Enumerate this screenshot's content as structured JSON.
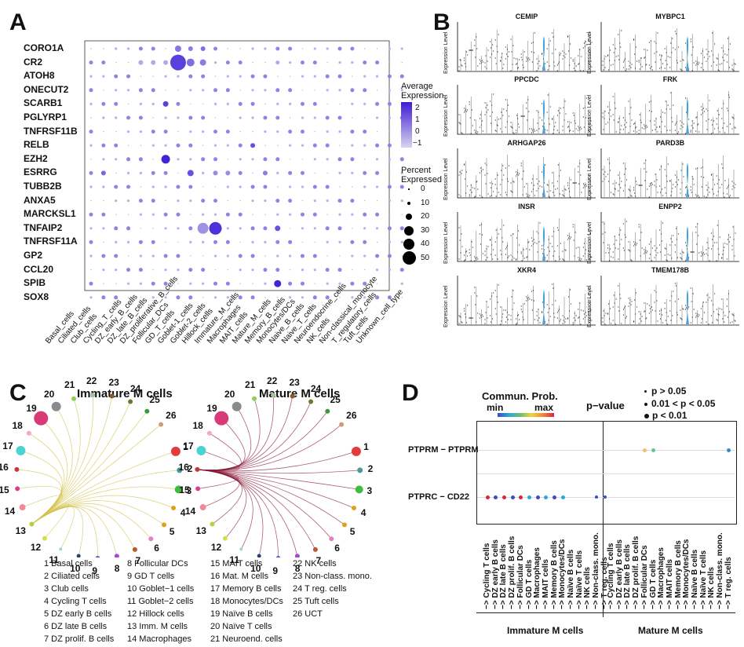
{
  "panels": {
    "A": "A",
    "B": "B",
    "C": "C",
    "D": "D"
  },
  "panelA": {
    "genes": [
      "CORO1A",
      "CR2",
      "ATOH8",
      "ONECUT2",
      "SCARB1",
      "PGLYRP1",
      "TNFRSF11B",
      "RELB",
      "EZH2",
      "ESRRG",
      "TUBB2B",
      "ANXA5",
      "MARCKSL1",
      "TNFAIP2",
      "TNFRSF11A",
      "GP2",
      "CCL20",
      "SPIB",
      "SOX8"
    ],
    "cell_types": [
      "Basal_cells",
      "Ciliated_cells",
      "Club_cells",
      "Cycling_T_cells",
      "DZ_early_B_cells",
      "DZ_late_B_cells",
      "DZ_proliferative_B_cells",
      "Follicular_DCs",
      "GD_T_cells",
      "Goblet-1_cells",
      "Goblet-2_cells",
      "Hillock_cells",
      "Immature_M_cells",
      "Macrophages",
      "MAIT_cells",
      "Mature_M_cells",
      "Memory_B_cells",
      "Monocytes/DCs",
      "Naive_B_cells",
      "Naive_T_cells",
      "Neuroendocrine_cells",
      "NK_cells",
      "Non-classical_monocyte",
      "T_regulatory_cells",
      "Tuft_cells",
      "Unknown_cell_type"
    ],
    "avg_expr_title": "Average\nExpression",
    "avg_expr_ticks": [
      "2",
      "1",
      "0",
      "−1"
    ],
    "pct_title": "Percent\nExpressed",
    "pct_ticks": [
      "0",
      "10",
      "20",
      "30",
      "40",
      "50"
    ]
  },
  "panelB": {
    "genes": [
      "CEMIP",
      "MYBPC1",
      "PPCDC",
      "FRK",
      "ARHGAP26",
      "PARD3B",
      "INSR",
      "ENPP2",
      "XKR4",
      "TMEM178B"
    ],
    "ylabel": "Expression Level"
  },
  "panelC": {
    "title_left": "Immature M cells",
    "title_right": "Mature M cells",
    "numbers": [
      "1",
      "2",
      "3",
      "4",
      "5",
      "6",
      "7",
      "8",
      "9",
      "10",
      "11",
      "12",
      "13",
      "14",
      "15",
      "16",
      "17",
      "18",
      "19",
      "20",
      "21",
      "22",
      "23",
      "24",
      "25",
      "26"
    ],
    "legend_col1": [
      "1 Basal cells",
      "2 Ciliated cells",
      "3 Club cells",
      "4 Cycling T cells",
      "5 DZ early B cells",
      "6 DZ late B cells",
      "7 DZ prolif. B cells"
    ],
    "legend_col2": [
      "8 Follicular DCs",
      "9 GD T cells",
      "10 Goblet−1 cells",
      "11 Goblet−2 cells",
      "12 Hillock cells",
      "13 Imm. M cells",
      "14 Macrophages"
    ],
    "legend_col3": [
      "15 MAIT cells",
      "16 Mat. M cells",
      "17 Memory B cells",
      "18 Monocytes/DCs",
      "19 Naïve B cells",
      "20 Naïve T cells",
      "21 Neuroend. cells"
    ],
    "legend_col4": [
      "22 NK cells",
      "23 Non-class. mono.",
      "24 T reg. cells",
      "25 Tuft cells",
      "26 UCT"
    ]
  },
  "panelD": {
    "commun_title": "Commun. Prob.",
    "min_label": "min",
    "max_label": "max",
    "pvalue_title": "p−value",
    "p_levels": [
      "p > 0.05",
      "0.01 < p < 0.05",
      "p < 0.01"
    ],
    "rows": [
      "PTPRM − PTPRM",
      "PTPRC − CD22"
    ],
    "x_left": [
      "−> Cycling T cells",
      "−> DZ early B cells",
      "−> DZ late B cells",
      "−> DZ prolif. B cells",
      "−> Follicular DCs",
      "−> GD T cells",
      "−> Macrophages",
      "−> MAIT cells",
      "−> Memory B cells",
      "−> Monocytes/DCs",
      "−> Naïve B cells",
      "−> Naïve T cells",
      "−> NK cells",
      "−> Non-class. mono.",
      "−> T reg. cells"
    ],
    "x_right": [
      "−> Cycling T cells",
      "−> DZ early B cells",
      "−> DZ late B cells",
      "−> DZ prolif. B cells",
      "−> Follicular DCs",
      "−> GD T cells",
      "−> Macrophages",
      "−> MAIT cells",
      "−> Memory B cells",
      "−> Monocytes/DCs",
      "−> Naïve B cells",
      "−> Naïve T cells",
      "−> NK cells",
      "−> Non-class. mono.",
      "−> T reg. cells"
    ],
    "group_left": "Immature M cells",
    "group_right": "Mature M cells"
  },
  "colors": {
    "low": "#d9d4ee",
    "high": "#3d1bd6",
    "rowline": "#cccccc"
  }
}
